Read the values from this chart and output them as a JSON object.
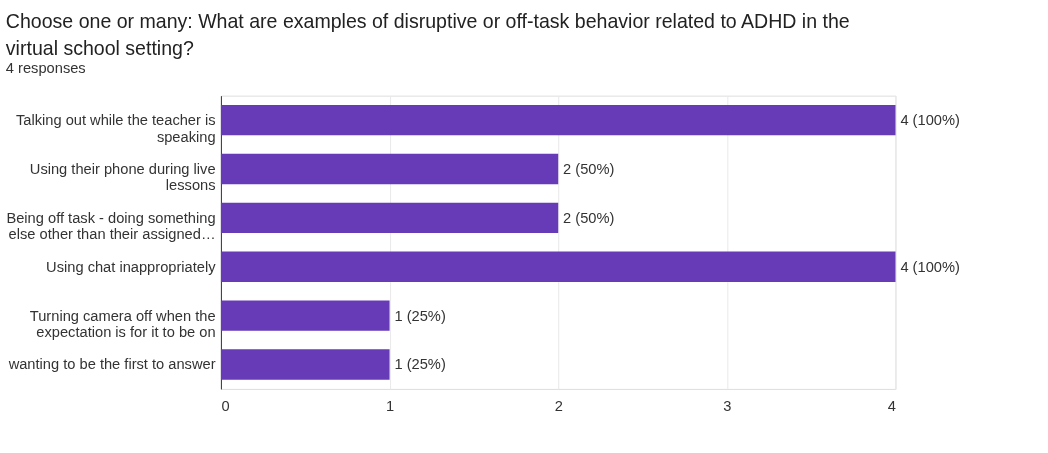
{
  "chart_data": {
    "type": "bar",
    "orientation": "horizontal",
    "title": "Choose one or many: What are examples of disruptive or off-task behavior related to ADHD in the virtual school setting?",
    "subtitle": "4 responses",
    "categories": [
      "Talking out while the teacher is speaking",
      "Using their phone during live lessons",
      "Being off task - doing something else other than their assigned…",
      "Using chat inappropriately",
      "Turning camera off when the expectation is for it to be on",
      "wanting to be the first to answer"
    ],
    "values": [
      4,
      2,
      2,
      4,
      1,
      1
    ],
    "value_labels": [
      "4 (100%)",
      "2 (50%)",
      "2 (50%)",
      "4 (100%)",
      "1 (25%)",
      "1 (25%)"
    ],
    "color": "#673ab7",
    "xlim": [
      0,
      4
    ],
    "xticks": [
      0,
      1,
      2,
      3,
      4
    ],
    "grid": "x"
  }
}
